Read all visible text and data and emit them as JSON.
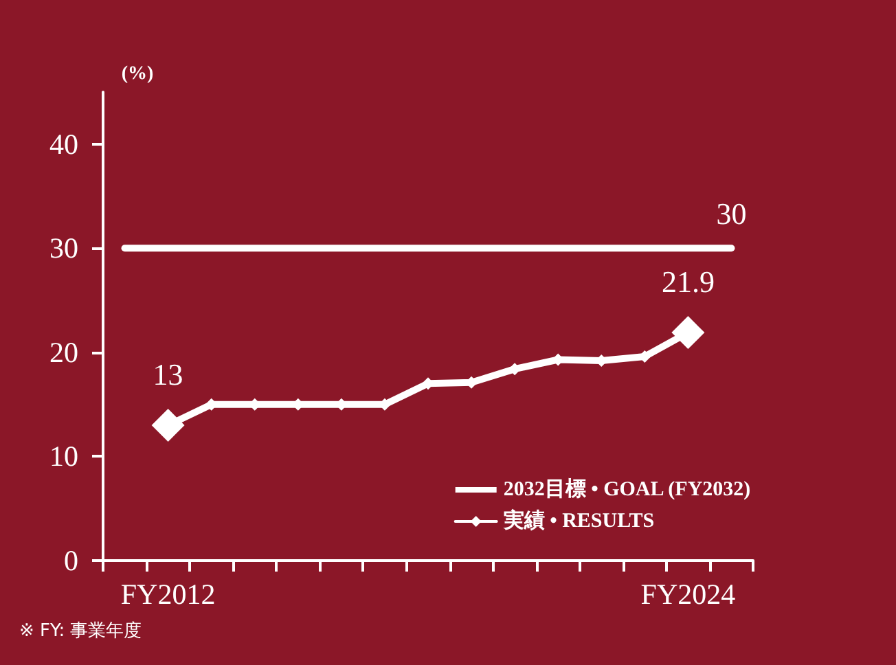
{
  "chart_data": {
    "type": "line",
    "categories": [
      null,
      "FY2012",
      null,
      null,
      null,
      null,
      null,
      null,
      null,
      null,
      null,
      null,
      null,
      "FY2024",
      null
    ],
    "ylabel": "(%)",
    "ylim": [
      0,
      45
    ],
    "yticks": [
      0,
      10,
      20,
      30,
      40
    ],
    "grid": false,
    "legend": "bottom right",
    "annotations": [
      "※ FY: 事業年度"
    ],
    "series": [
      {
        "name": "2032目標 • GOAL (FY2032)",
        "color": "#ffffff",
        "marker": "none",
        "values": [
          30,
          30,
          30,
          30,
          30,
          30,
          30,
          30,
          30,
          30,
          30,
          30,
          30,
          30,
          30
        ],
        "value_labels": [
          null,
          null,
          null,
          null,
          null,
          null,
          null,
          null,
          null,
          null,
          null,
          null,
          null,
          null,
          "30"
        ]
      },
      {
        "name": "実績 • RESULTS",
        "color": "#ffffff",
        "marker": "diamond",
        "values": [
          null,
          13,
          15,
          15,
          15,
          15,
          15,
          17,
          17.1,
          18.4,
          19.3,
          19.2,
          19.6,
          21.9,
          null
        ],
        "value_labels": [
          null,
          "13",
          null,
          null,
          null,
          null,
          null,
          null,
          null,
          null,
          null,
          null,
          null,
          "21.9",
          null
        ]
      }
    ]
  }
}
